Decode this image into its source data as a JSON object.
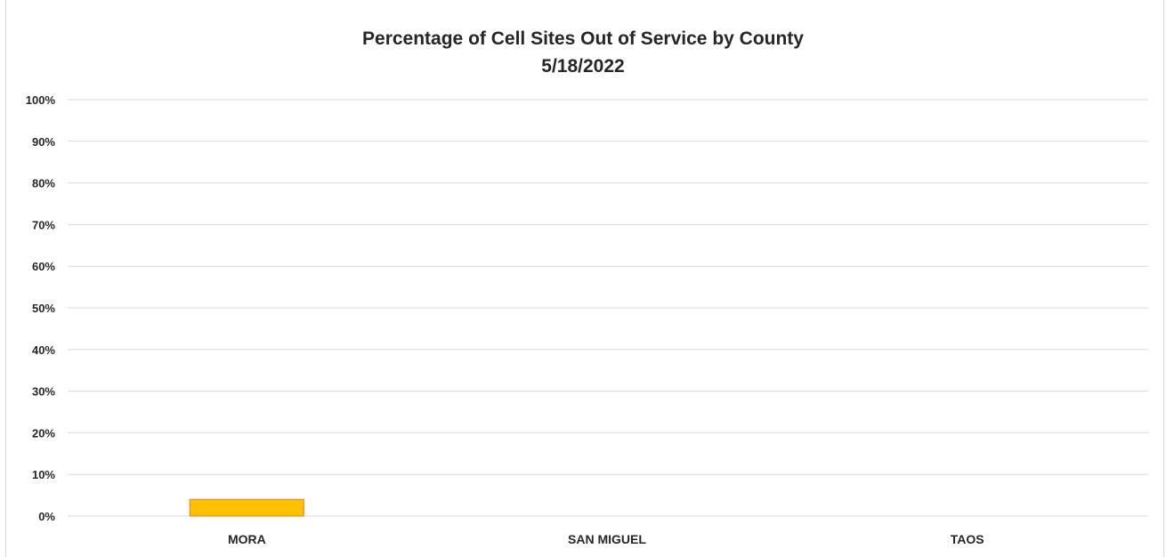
{
  "chart_data": {
    "type": "bar",
    "title": "Percentage of Cell Sites Out of Service by County",
    "subtitle": "5/18/2022",
    "categories": [
      "MORA",
      "SAN MIGUEL",
      "TAOS"
    ],
    "values": [
      0.04,
      0,
      0
    ],
    "ylim": [
      0,
      1
    ],
    "yticks": [
      "0%",
      "10%",
      "20%",
      "30%",
      "40%",
      "50%",
      "60%",
      "70%",
      "80%",
      "90%",
      "100%"
    ],
    "grid": true,
    "bar_color": "#ffc000",
    "bar_edge_color": "#ed7d31",
    "grid_color": "#d9d9d9"
  }
}
